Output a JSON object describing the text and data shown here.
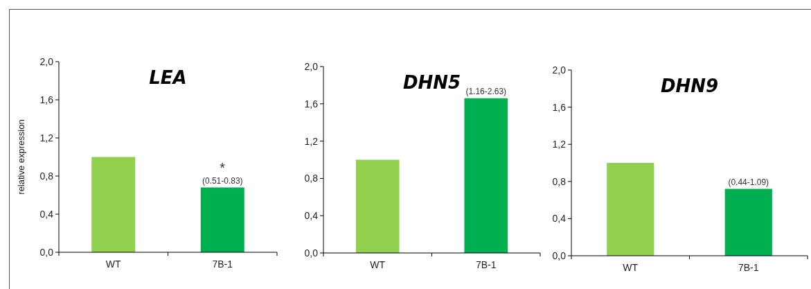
{
  "chart_data": [
    {
      "type": "bar",
      "title": "LEA",
      "ylabel": "relative expression",
      "categories": [
        "WT",
        "7B-1"
      ],
      "values": [
        1.0,
        0.68
      ],
      "colors": [
        "#92d050",
        "#00b050"
      ],
      "ylim": [
        0,
        2
      ],
      "yticks": [
        {
          "value": 0,
          "label": "0,0"
        },
        {
          "value": 0.4,
          "label": "0,4"
        },
        {
          "value": 0.8,
          "label": "0,8"
        },
        {
          "value": 1.2,
          "label": "1,2"
        },
        {
          "value": 1.6,
          "label": "1,6"
        },
        {
          "value": 2,
          "label": "2,0"
        }
      ],
      "annotations": [
        {
          "text": "*",
          "x": "7B-1",
          "y": 0.68
        },
        {
          "text": "(0.51-0.83)",
          "x": "7B-1",
          "y": 0.68
        }
      ]
    },
    {
      "type": "bar",
      "title": "DHN5",
      "categories": [
        "WT",
        "7B-1"
      ],
      "values": [
        1.0,
        1.66
      ],
      "colors": [
        "#92d050",
        "#00b050"
      ],
      "ylim": [
        0,
        2
      ],
      "yticks": [
        {
          "value": 0,
          "label": "0,0"
        },
        {
          "value": 0.4,
          "label": "0,4"
        },
        {
          "value": 0.8,
          "label": "0,8"
        },
        {
          "value": 1.2,
          "label": "1,2"
        },
        {
          "value": 1.6,
          "label": "1,6"
        },
        {
          "value": 2,
          "label": "2,0"
        }
      ],
      "annotations": [
        {
          "text": "(1.16-2.63)",
          "x": "7B-1",
          "y": 1.66
        }
      ]
    },
    {
      "type": "bar",
      "title": "DHN9",
      "categories": [
        "WT",
        "7B-1"
      ],
      "values": [
        1.0,
        0.72
      ],
      "colors": [
        "#92d050",
        "#00b050"
      ],
      "ylim": [
        0,
        2
      ],
      "yticks": [
        {
          "value": 0,
          "label": "0,0"
        },
        {
          "value": 0.4,
          "label": "0,4"
        },
        {
          "value": 0.8,
          "label": "0,8"
        },
        {
          "value": 1.2,
          "label": "1,2"
        },
        {
          "value": 1.6,
          "label": "1,6"
        },
        {
          "value": 2,
          "label": "2,0"
        }
      ],
      "annotations": [
        {
          "text": "(0.44-1.09)",
          "x": "7B-1",
          "y": 0.72
        }
      ]
    }
  ]
}
